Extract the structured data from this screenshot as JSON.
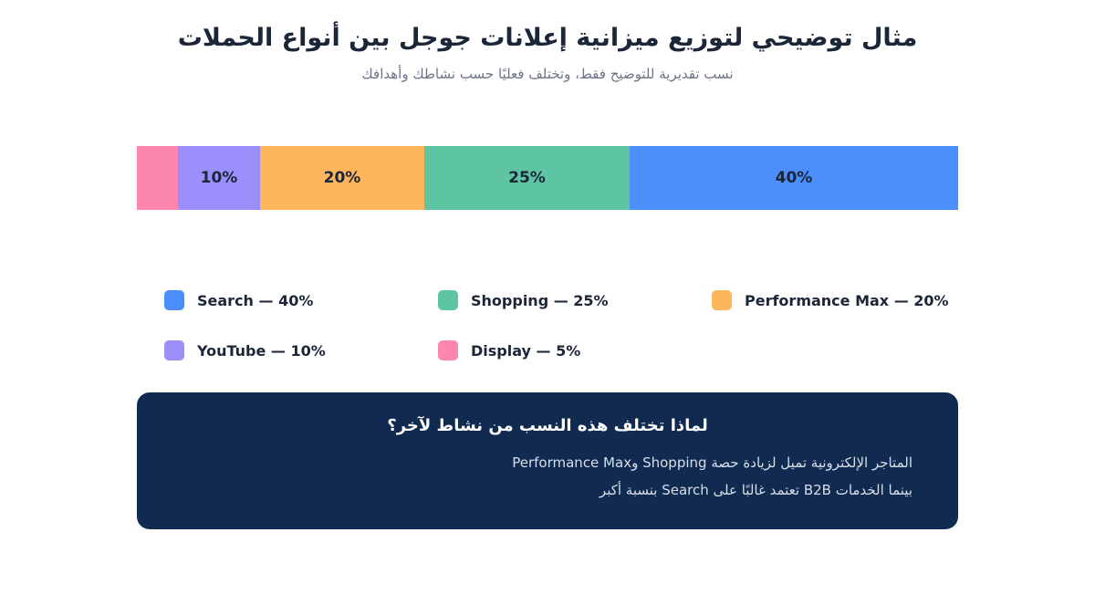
{
  "header": {
    "title": "مثال توضيحي لتوزيع ميزانية إعلانات جوجل بين أنواع الحملات",
    "subtitle": "نسب تقديرية للتوضيح فقط، وتختلف فعليًا حسب نشاطك وأهدافك"
  },
  "chart_data": {
    "type": "bar",
    "orientation": "horizontal-stacked",
    "title": "مثال توضيحي لتوزيع ميزانية إعلانات جوجل بين أنواع الحملات",
    "unit": "%",
    "series": [
      {
        "name": "Display",
        "value": 5,
        "color": "#fd86ad",
        "label": ""
      },
      {
        "name": "YouTube",
        "value": 10,
        "color": "#9b8ffb",
        "label": "10%"
      },
      {
        "name": "Performance Max",
        "value": 20,
        "color": "#fdb65c",
        "label": "20%"
      },
      {
        "name": "Shopping",
        "value": 25,
        "color": "#5ec5a4",
        "label": "25%"
      },
      {
        "name": "Search",
        "value": 40,
        "color": "#4d8efd",
        "label": "40%"
      }
    ],
    "legend": {
      "placement": "below",
      "items": [
        {
          "text": "Search — 40%",
          "color": "#4d8efd"
        },
        {
          "text": "Shopping — 25%",
          "color": "#5ec5a4"
        },
        {
          "text": "Performance Max — 20%",
          "color": "#fdb65c"
        },
        {
          "text": "YouTube — 10%",
          "color": "#9b8ffb"
        },
        {
          "text": "Display — 5%",
          "color": "#fd86ad"
        }
      ]
    }
  },
  "note": {
    "title": "لماذا تختلف هذه النسب من نشاط لآخر؟",
    "line1": "المتاجر الإلكترونية تميل لزيادة حصة Shopping وPerformance Max",
    "line2": "بينما الخدمات B2B تعتمد غالبًا على Search بنسبة أكبر"
  }
}
